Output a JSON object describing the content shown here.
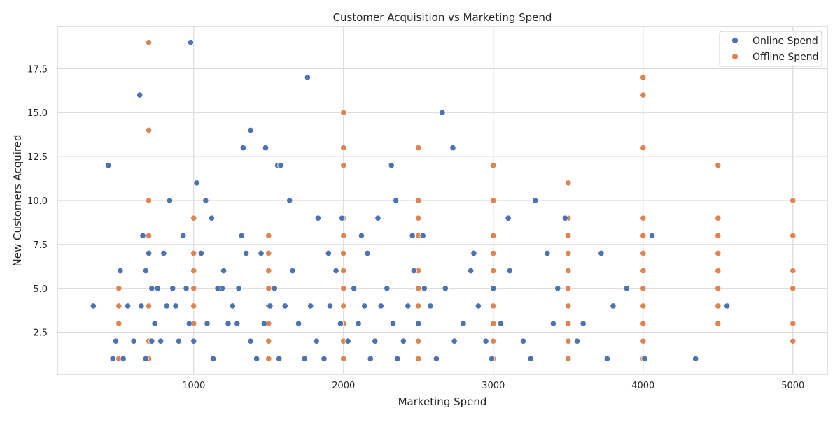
{
  "chart_data": {
    "type": "scatter",
    "title": "Customer Acquisition vs Marketing Spend",
    "xlabel": "Marketing Spend",
    "ylabel": "New Customers Acquired",
    "xlim": [
      90,
      5230
    ],
    "ylim": [
      0.1,
      19.9
    ],
    "xticks": [
      1000,
      2000,
      3000,
      4000,
      5000
    ],
    "xtick_labels": [
      "1000",
      "2000",
      "3000",
      "4000",
      "5000"
    ],
    "yticks": [
      2.5,
      5.0,
      7.5,
      10.0,
      12.5,
      15.0,
      17.5
    ],
    "ytick_labels": [
      "2.5",
      "5.0",
      "7.5",
      "10.0",
      "12.5",
      "15.0",
      "17.5"
    ],
    "grid": true,
    "legend_position": "top-right",
    "series": [
      {
        "name": "Online Spend",
        "color": "#4c72b0",
        "points": [
          [
            330,
            4
          ],
          [
            430,
            12
          ],
          [
            460,
            1
          ],
          [
            480,
            2
          ],
          [
            510,
            6
          ],
          [
            530,
            1
          ],
          [
            560,
            4
          ],
          [
            640,
            16
          ],
          [
            660,
            8
          ],
          [
            680,
            6
          ],
          [
            700,
            7
          ],
          [
            720,
            5
          ],
          [
            740,
            3
          ],
          [
            800,
            7
          ],
          [
            840,
            10
          ],
          [
            880,
            4
          ],
          [
            930,
            8
          ],
          [
            980,
            19
          ],
          [
            1020,
            11
          ],
          [
            1080,
            10
          ],
          [
            1120,
            9
          ],
          [
            1190,
            5
          ],
          [
            1290,
            3
          ],
          [
            1320,
            8
          ],
          [
            1330,
            13
          ],
          [
            1380,
            14
          ],
          [
            1480,
            13
          ],
          [
            1560,
            12
          ],
          [
            1580,
            12
          ],
          [
            1640,
            10
          ],
          [
            1760,
            17
          ],
          [
            1830,
            9
          ],
          [
            1900,
            7
          ],
          [
            1990,
            9
          ],
          [
            2120,
            8
          ],
          [
            2160,
            7
          ],
          [
            2230,
            9
          ],
          [
            2320,
            12
          ],
          [
            2350,
            10
          ],
          [
            2460,
            8
          ],
          [
            2530,
            8
          ],
          [
            2660,
            15
          ],
          [
            2730,
            13
          ],
          [
            2870,
            7
          ],
          [
            3000,
            5
          ],
          [
            3100,
            9
          ],
          [
            3280,
            10
          ],
          [
            3480,
            9
          ],
          [
            3720,
            7
          ],
          [
            3890,
            5
          ],
          [
            4060,
            8
          ],
          [
            4350,
            1
          ],
          [
            4560,
            4
          ],
          [
            600,
            2
          ],
          [
            650,
            4
          ],
          [
            680,
            1
          ],
          [
            720,
            2
          ],
          [
            760,
            5
          ],
          [
            780,
            2
          ],
          [
            820,
            4
          ],
          [
            860,
            5
          ],
          [
            900,
            2
          ],
          [
            950,
            5
          ],
          [
            970,
            3
          ],
          [
            1000,
            2
          ],
          [
            1050,
            7
          ],
          [
            1090,
            3
          ],
          [
            1130,
            1
          ],
          [
            1160,
            5
          ],
          [
            1200,
            6
          ],
          [
            1230,
            3
          ],
          [
            1260,
            4
          ],
          [
            1300,
            5
          ],
          [
            1350,
            7
          ],
          [
            1380,
            2
          ],
          [
            1420,
            1
          ],
          [
            1450,
            7
          ],
          [
            1470,
            3
          ],
          [
            1510,
            4
          ],
          [
            1540,
            5
          ],
          [
            1570,
            1
          ],
          [
            1610,
            4
          ],
          [
            1660,
            6
          ],
          [
            1700,
            3
          ],
          [
            1740,
            1
          ],
          [
            1780,
            4
          ],
          [
            1820,
            2
          ],
          [
            1870,
            1
          ],
          [
            1910,
            4
          ],
          [
            1950,
            6
          ],
          [
            1980,
            3
          ],
          [
            2030,
            2
          ],
          [
            2070,
            5
          ],
          [
            2100,
            3
          ],
          [
            2140,
            4
          ],
          [
            2180,
            1
          ],
          [
            2210,
            2
          ],
          [
            2250,
            4
          ],
          [
            2290,
            5
          ],
          [
            2330,
            3
          ],
          [
            2360,
            1
          ],
          [
            2400,
            2
          ],
          [
            2430,
            4
          ],
          [
            2470,
            6
          ],
          [
            2500,
            3
          ],
          [
            2540,
            5
          ],
          [
            2580,
            4
          ],
          [
            2620,
            1
          ],
          [
            2680,
            5
          ],
          [
            2740,
            2
          ],
          [
            2800,
            3
          ],
          [
            2850,
            6
          ],
          [
            2900,
            4
          ],
          [
            2950,
            2
          ],
          [
            2990,
            1
          ],
          [
            3050,
            3
          ],
          [
            3110,
            6
          ],
          [
            3200,
            2
          ],
          [
            3250,
            1
          ],
          [
            3360,
            7
          ],
          [
            3400,
            3
          ],
          [
            3430,
            5
          ],
          [
            3560,
            2
          ],
          [
            3600,
            3
          ],
          [
            3760,
            1
          ],
          [
            3800,
            4
          ],
          [
            4010,
            1
          ]
        ]
      },
      {
        "name": "Offline Spend",
        "color": "#dd8452",
        "points": [
          [
            500,
            1
          ],
          [
            500,
            3
          ],
          [
            500,
            4
          ],
          [
            500,
            5
          ],
          [
            700,
            1
          ],
          [
            700,
            2
          ],
          [
            700,
            4
          ],
          [
            700,
            7
          ],
          [
            700,
            8
          ],
          [
            700,
            10
          ],
          [
            700,
            14
          ],
          [
            700,
            19
          ],
          [
            1000,
            2
          ],
          [
            1000,
            3
          ],
          [
            1000,
            4
          ],
          [
            1000,
            5
          ],
          [
            1000,
            6
          ],
          [
            1000,
            7
          ],
          [
            1000,
            9
          ],
          [
            1500,
            1
          ],
          [
            1500,
            2
          ],
          [
            1500,
            3
          ],
          [
            1500,
            4
          ],
          [
            1500,
            5
          ],
          [
            1500,
            6
          ],
          [
            1500,
            7
          ],
          [
            1500,
            8
          ],
          [
            2000,
            1
          ],
          [
            2000,
            2
          ],
          [
            2000,
            3
          ],
          [
            2000,
            4
          ],
          [
            2000,
            5
          ],
          [
            2000,
            6
          ],
          [
            2000,
            7
          ],
          [
            2000,
            8
          ],
          [
            2000,
            9
          ],
          [
            2000,
            12
          ],
          [
            2000,
            13
          ],
          [
            2000,
            15
          ],
          [
            2500,
            1
          ],
          [
            2500,
            2
          ],
          [
            2500,
            3
          ],
          [
            2500,
            4
          ],
          [
            2500,
            5
          ],
          [
            2500,
            6
          ],
          [
            2500,
            8
          ],
          [
            2500,
            9
          ],
          [
            2500,
            10
          ],
          [
            2500,
            13
          ],
          [
            3000,
            1
          ],
          [
            3000,
            2
          ],
          [
            3000,
            3
          ],
          [
            3000,
            4
          ],
          [
            3000,
            5
          ],
          [
            3000,
            6
          ],
          [
            3000,
            7
          ],
          [
            3000,
            8
          ],
          [
            3000,
            10
          ],
          [
            3000,
            12
          ],
          [
            3500,
            1
          ],
          [
            3500,
            2
          ],
          [
            3500,
            3
          ],
          [
            3500,
            4
          ],
          [
            3500,
            5
          ],
          [
            3500,
            6
          ],
          [
            3500,
            7
          ],
          [
            3500,
            8
          ],
          [
            3500,
            9
          ],
          [
            3500,
            11
          ],
          [
            4000,
            1
          ],
          [
            4000,
            2
          ],
          [
            4000,
            3
          ],
          [
            4000,
            4
          ],
          [
            4000,
            5
          ],
          [
            4000,
            6
          ],
          [
            4000,
            7
          ],
          [
            4000,
            8
          ],
          [
            4000,
            9
          ],
          [
            4000,
            13
          ],
          [
            4000,
            16
          ],
          [
            4000,
            17
          ],
          [
            4500,
            3
          ],
          [
            4500,
            4
          ],
          [
            4500,
            5
          ],
          [
            4500,
            6
          ],
          [
            4500,
            7
          ],
          [
            4500,
            8
          ],
          [
            4500,
            9
          ],
          [
            4500,
            12
          ],
          [
            5000,
            2
          ],
          [
            5000,
            3
          ],
          [
            5000,
            5
          ],
          [
            5000,
            6
          ],
          [
            5000,
            8
          ],
          [
            5000,
            10
          ]
        ]
      }
    ]
  }
}
